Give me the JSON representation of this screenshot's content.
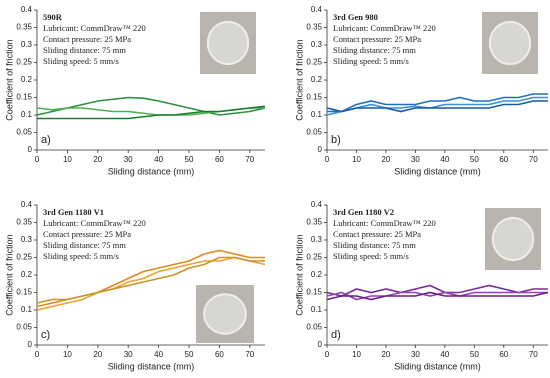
{
  "chart_data": [
    {
      "type": "line",
      "title": "590R",
      "annotations": [
        "Lubricant: CommDraw™ 220",
        "Contact pressure: 25 MPa",
        "Sliding distance: 75 mm",
        "Sliding speed: 5 mm/s"
      ],
      "panel_label": "a)",
      "x_label": "Sliding distance (mm)",
      "y_label": "Coefficient of friction",
      "x": [
        0,
        5,
        10,
        15,
        20,
        25,
        30,
        35,
        40,
        45,
        50,
        55,
        60,
        65,
        70,
        75
      ],
      "series": [
        {
          "color": "#2f8f3f",
          "values": [
            0.1,
            0.11,
            0.12,
            0.13,
            0.14,
            0.145,
            0.15,
            0.148,
            0.14,
            0.13,
            0.12,
            0.11,
            0.1,
            0.105,
            0.11,
            0.12
          ]
        },
        {
          "color": "#46b356",
          "values": [
            0.12,
            0.115,
            0.12,
            0.12,
            0.115,
            0.11,
            0.11,
            0.105,
            0.1,
            0.1,
            0.1,
            0.105,
            0.11,
            0.115,
            0.12,
            0.12
          ]
        },
        {
          "color": "#1f7a30",
          "values": [
            0.09,
            0.09,
            0.09,
            0.09,
            0.09,
            0.09,
            0.09,
            0.095,
            0.1,
            0.1,
            0.105,
            0.11,
            0.11,
            0.115,
            0.12,
            0.125
          ]
        }
      ],
      "xlim": [
        0,
        75
      ],
      "xticks": [
        0,
        10,
        20,
        30,
        40,
        50,
        60,
        70
      ],
      "ylim": [
        0,
        0.4
      ],
      "yticks": [
        0,
        0.05,
        0.1,
        0.15,
        0.2,
        0.25,
        0.3,
        0.35,
        0.4
      ]
    },
    {
      "type": "line",
      "title": "3rd Gen 980",
      "annotations": [
        "Lubricant: CommDraw™ 220",
        "Contact pressure: 25 MPa",
        "Sliding distance: 75 mm",
        "Sliding speed: 5 mm/s"
      ],
      "panel_label": "b)",
      "x_label": "Sliding distance (mm)",
      "y_label": "Coefficient of friction",
      "x": [
        0,
        5,
        10,
        15,
        20,
        25,
        30,
        35,
        40,
        45,
        50,
        55,
        60,
        65,
        70,
        75
      ],
      "series": [
        {
          "color": "#1f6fc4",
          "values": [
            0.11,
            0.11,
            0.13,
            0.14,
            0.13,
            0.13,
            0.13,
            0.14,
            0.14,
            0.15,
            0.14,
            0.14,
            0.15,
            0.15,
            0.16,
            0.16
          ]
        },
        {
          "color": "#3a8fd8",
          "values": [
            0.1,
            0.11,
            0.12,
            0.13,
            0.12,
            0.12,
            0.125,
            0.12,
            0.13,
            0.13,
            0.13,
            0.13,
            0.14,
            0.14,
            0.15,
            0.15
          ]
        },
        {
          "color": "#1558a8",
          "values": [
            0.12,
            0.11,
            0.12,
            0.12,
            0.12,
            0.11,
            0.12,
            0.12,
            0.12,
            0.12,
            0.12,
            0.12,
            0.13,
            0.13,
            0.14,
            0.14
          ]
        }
      ],
      "xlim": [
        0,
        75
      ],
      "xticks": [
        0,
        10,
        20,
        30,
        40,
        50,
        60,
        70
      ],
      "ylim": [
        0,
        0.4
      ],
      "yticks": [
        0,
        0.05,
        0.1,
        0.15,
        0.2,
        0.25,
        0.3,
        0.35,
        0.4
      ]
    },
    {
      "type": "line",
      "title": "3rd Gen 1180 V1",
      "annotations": [
        "Lubricant: CommDraw™ 220",
        "Contact pressure: 25 MPa",
        "Sliding distance: 75 mm",
        "Sliding speed: 5 mm/s"
      ],
      "panel_label": "c)",
      "x_label": "Sliding distance (mm)",
      "y_label": "Coefficient of friction",
      "x": [
        0,
        5,
        10,
        15,
        20,
        25,
        30,
        35,
        40,
        45,
        50,
        55,
        60,
        65,
        70,
        75
      ],
      "series": [
        {
          "color": "#e08a1e",
          "values": [
            0.11,
            0.12,
            0.13,
            0.14,
            0.15,
            0.17,
            0.19,
            0.21,
            0.22,
            0.23,
            0.24,
            0.26,
            0.27,
            0.26,
            0.25,
            0.25
          ]
        },
        {
          "color": "#f0a030",
          "values": [
            0.1,
            0.11,
            0.12,
            0.13,
            0.15,
            0.16,
            0.18,
            0.19,
            0.21,
            0.22,
            0.23,
            0.24,
            0.24,
            0.25,
            0.24,
            0.23
          ]
        },
        {
          "color": "#c8961e",
          "values": [
            0.12,
            0.13,
            0.13,
            0.14,
            0.15,
            0.16,
            0.17,
            0.18,
            0.19,
            0.2,
            0.22,
            0.23,
            0.25,
            0.25,
            0.24,
            0.24
          ]
        }
      ],
      "xlim": [
        0,
        75
      ],
      "xticks": [
        0,
        10,
        20,
        30,
        40,
        50,
        60,
        70
      ],
      "ylim": [
        0,
        0.4
      ],
      "yticks": [
        0,
        0.05,
        0.1,
        0.15,
        0.2,
        0.25,
        0.3,
        0.35,
        0.4
      ]
    },
    {
      "type": "line",
      "title": "3rd Gen 1180 V2",
      "annotations": [
        "Lubricant: CommDraw™ 220",
        "Contact pressure: 25 MPa",
        "Sliding distance: 75 mm",
        "Sliding speed: 5 mm/s"
      ],
      "panel_label": "d)",
      "x_label": "Sliding distance (mm)",
      "y_label": "Coefficient of friction",
      "x": [
        0,
        5,
        10,
        15,
        20,
        25,
        30,
        35,
        40,
        45,
        50,
        55,
        60,
        65,
        70,
        75
      ],
      "series": [
        {
          "color": "#7a2a9a",
          "values": [
            0.15,
            0.14,
            0.16,
            0.15,
            0.16,
            0.15,
            0.16,
            0.17,
            0.15,
            0.15,
            0.16,
            0.17,
            0.16,
            0.15,
            0.16,
            0.16
          ]
        },
        {
          "color": "#9440b4",
          "values": [
            0.14,
            0.15,
            0.13,
            0.14,
            0.14,
            0.15,
            0.15,
            0.14,
            0.15,
            0.14,
            0.15,
            0.15,
            0.15,
            0.15,
            0.15,
            0.15
          ]
        },
        {
          "color": "#6a1f88",
          "values": [
            0.13,
            0.14,
            0.14,
            0.13,
            0.14,
            0.14,
            0.14,
            0.15,
            0.14,
            0.14,
            0.14,
            0.14,
            0.14,
            0.14,
            0.14,
            0.15
          ]
        }
      ],
      "xlim": [
        0,
        75
      ],
      "xticks": [
        0,
        10,
        20,
        30,
        40,
        50,
        60,
        70
      ],
      "ylim": [
        0,
        0.4
      ],
      "yticks": [
        0,
        0.05,
        0.1,
        0.15,
        0.2,
        0.25,
        0.3,
        0.35,
        0.4
      ]
    }
  ]
}
